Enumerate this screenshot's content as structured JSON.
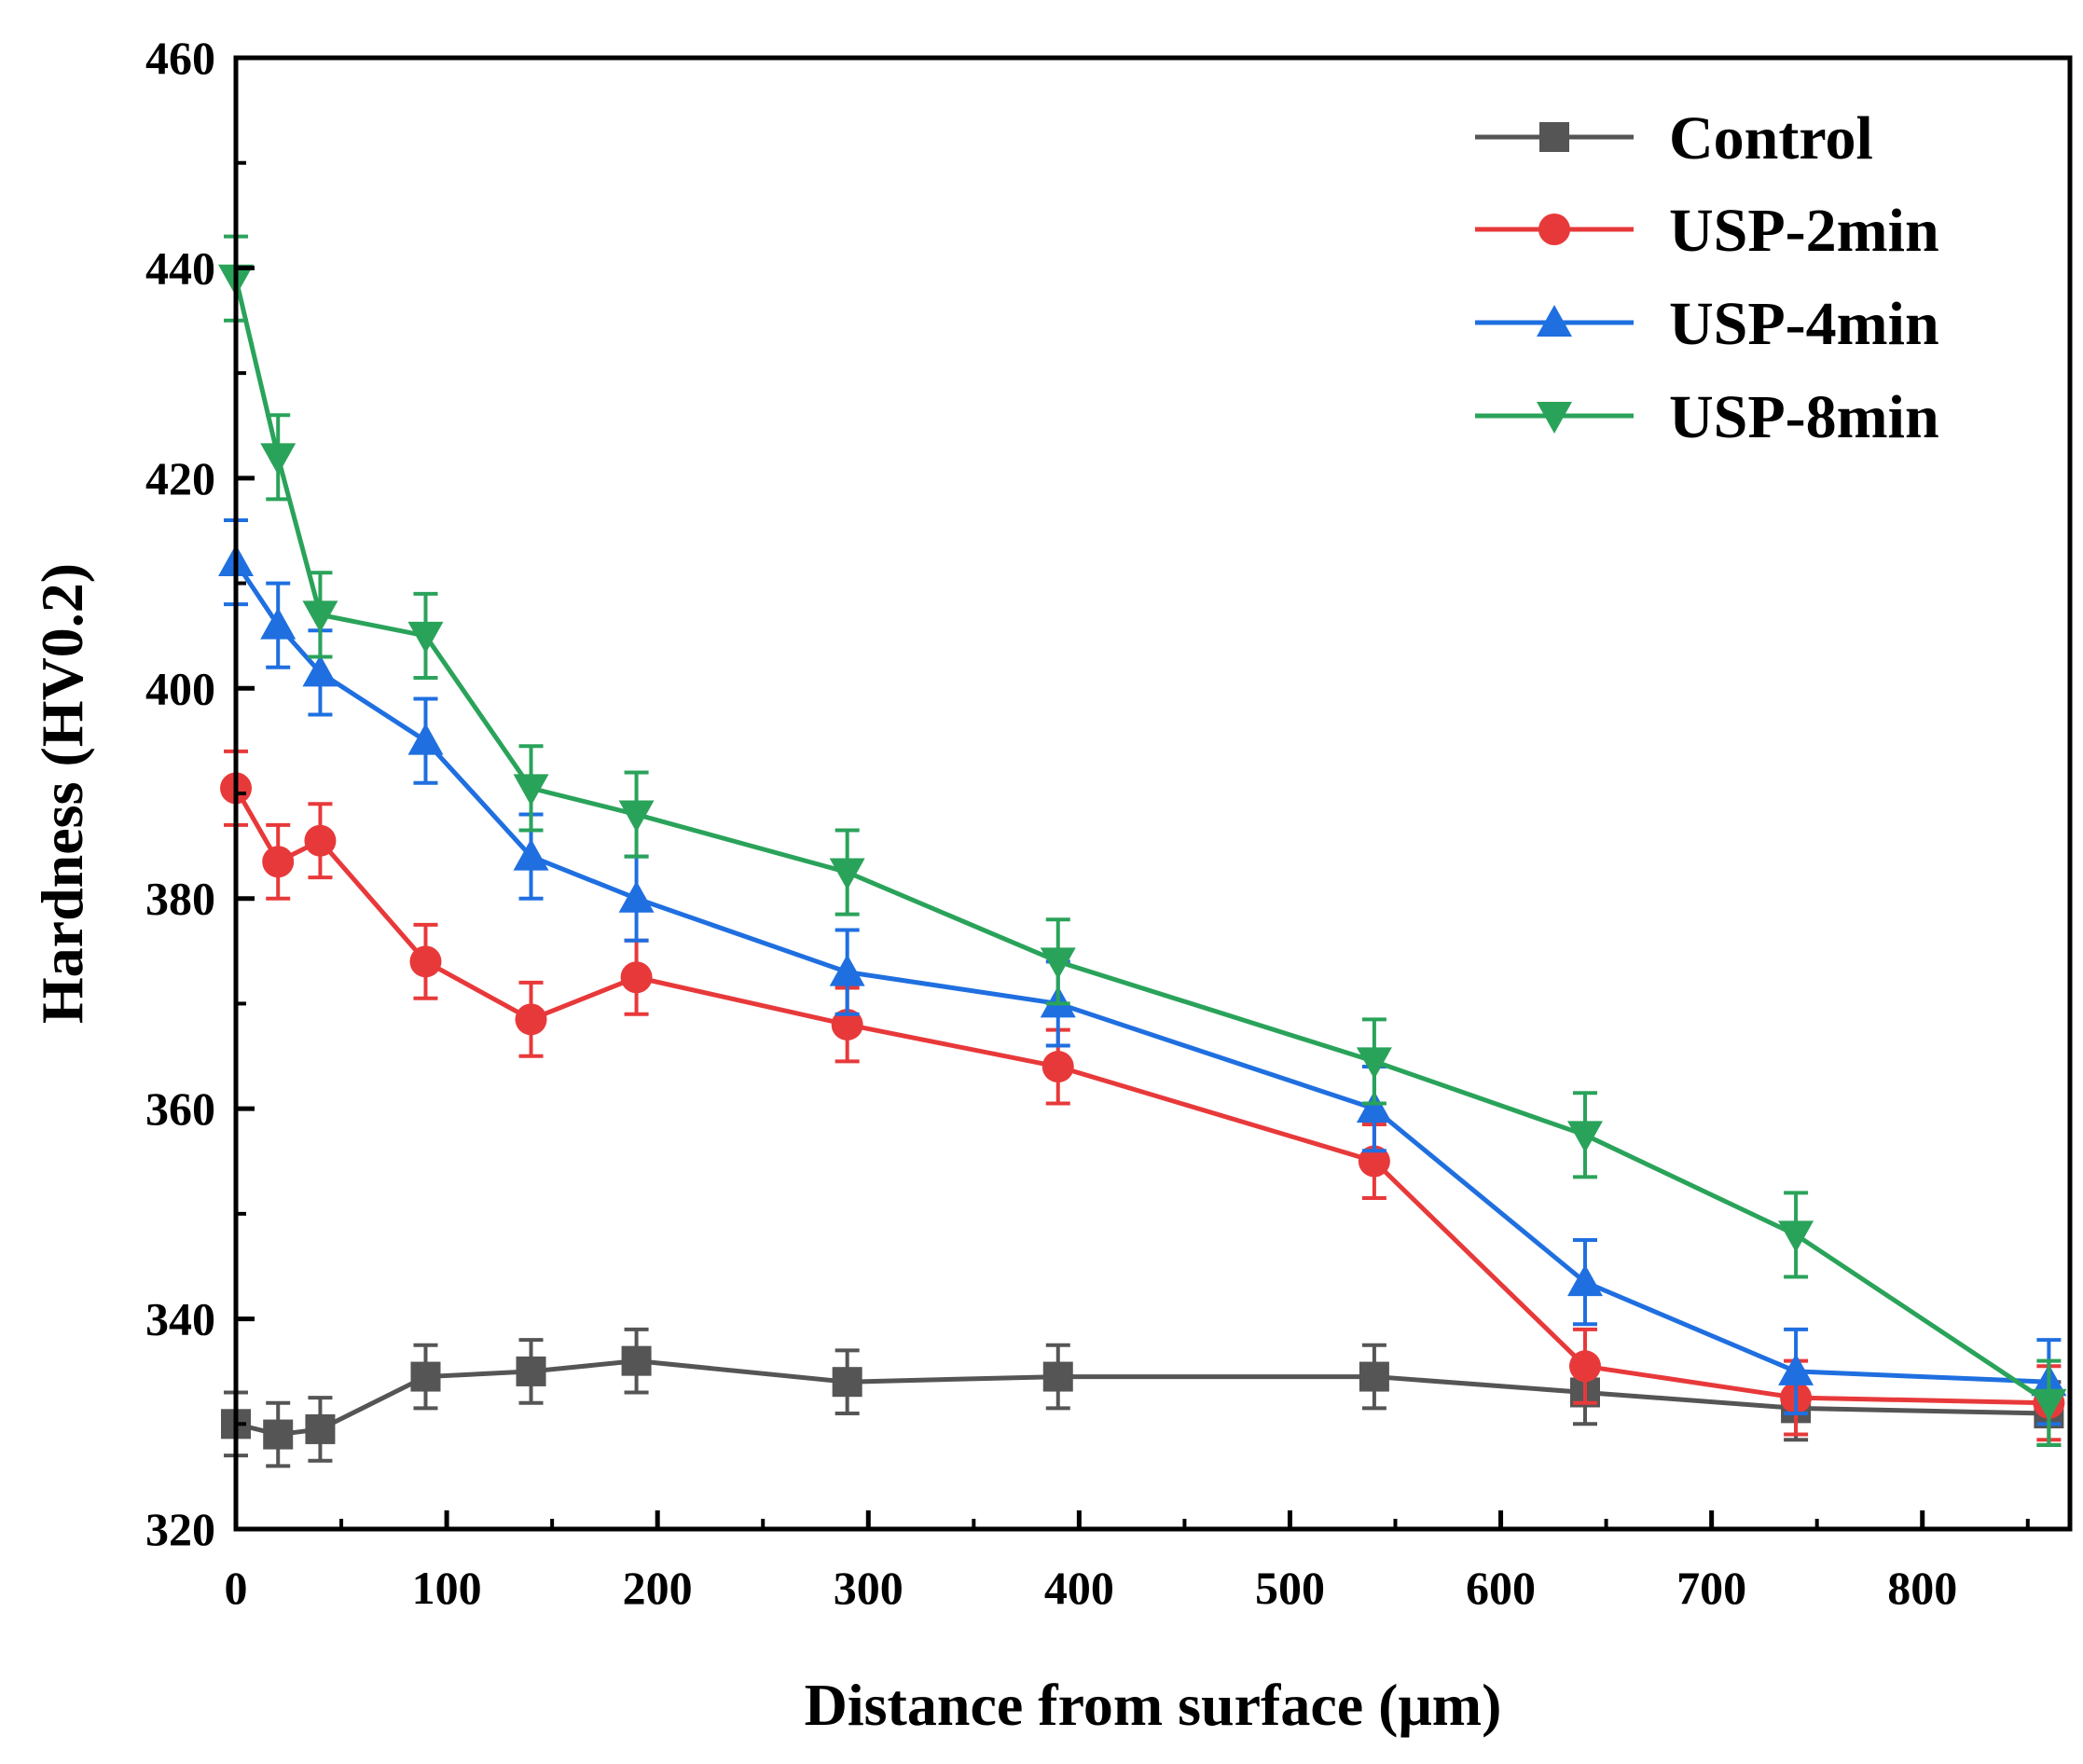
{
  "chart_data": {
    "type": "line",
    "title": "",
    "xlabel": "Distance from surface (μm)",
    "ylabel": "Hardness (HV0.2)",
    "xlim": [
      0,
      870
    ],
    "ylim": [
      320,
      460
    ],
    "xticks": [
      0,
      100,
      200,
      300,
      400,
      500,
      600,
      700,
      800
    ],
    "yticks": [
      320,
      340,
      360,
      380,
      400,
      420,
      440,
      460
    ],
    "grid": false,
    "legend_position": "top-right",
    "x": [
      0,
      20,
      40,
      90,
      140,
      190,
      290,
      390,
      540,
      640,
      740,
      860
    ],
    "series": [
      {
        "name": "Control",
        "color": "#555555",
        "marker": "square",
        "values": [
          330,
          329,
          329.5,
          334.5,
          335,
          336,
          334,
          334.5,
          334.5,
          333,
          331.5,
          331
        ],
        "errors": [
          3,
          3,
          3,
          3,
          3,
          3,
          3,
          3,
          3,
          3,
          3,
          3
        ]
      },
      {
        "name": "USP-2min",
        "color": "#e8393a",
        "marker": "circle",
        "values": [
          390.5,
          383.5,
          385.5,
          374,
          368.5,
          372.5,
          368,
          364,
          355,
          335.5,
          332.5,
          332
        ],
        "errors": [
          3.5,
          3.5,
          3.5,
          3.5,
          3.5,
          3.5,
          3.5,
          3.5,
          3.5,
          3.5,
          3.5,
          3.5
        ]
      },
      {
        "name": "USP-4min",
        "color": "#1f6fe0",
        "marker": "triangle-up",
        "values": [
          412,
          406,
          401.5,
          395,
          384,
          380,
          373,
          370,
          360,
          343.5,
          335,
          334
        ],
        "errors": [
          4,
          4,
          4,
          4,
          4,
          4,
          4,
          4,
          4,
          4,
          4,
          4
        ]
      },
      {
        "name": "USP-8min",
        "color": "#2aa35a",
        "marker": "triangle-down",
        "values": [
          439,
          422,
          407,
          405,
          390.5,
          388,
          382.5,
          374,
          364.5,
          357.5,
          348,
          332
        ],
        "errors": [
          4,
          4,
          4,
          4,
          4,
          4,
          4,
          4,
          4,
          4,
          4,
          4
        ]
      }
    ]
  }
}
